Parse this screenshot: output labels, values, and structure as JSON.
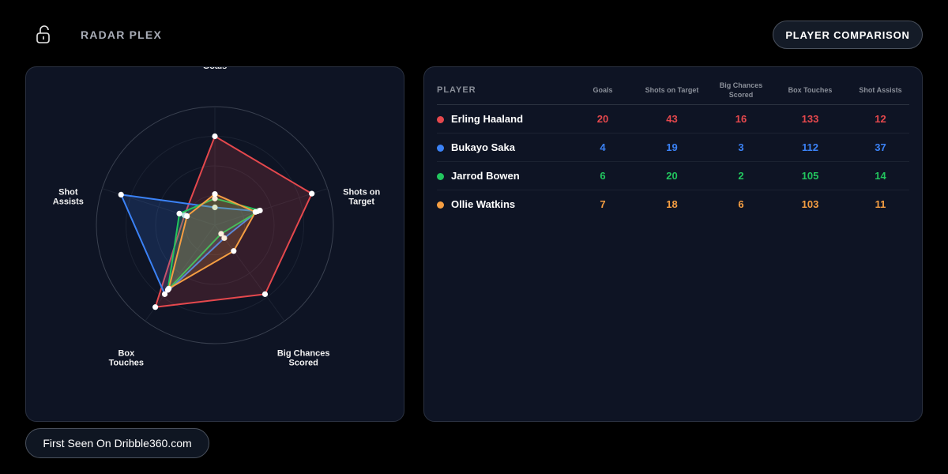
{
  "brand": {
    "name": "RADAR PLEX"
  },
  "header": {
    "compare_button": "PLAYER COMPARISON"
  },
  "footer": {
    "credit": "First Seen On Dribble360.com"
  },
  "table": {
    "player_header": "PLAYER",
    "columns": [
      "Goals",
      "Shots on Target",
      "Big Chances Scored",
      "Box Touches",
      "Shot Assists"
    ],
    "rows": [
      {
        "name": "Erling Haaland",
        "color": "#e5484d",
        "values": [
          "20",
          "43",
          "16",
          "133",
          "12"
        ]
      },
      {
        "name": "Bukayo Saka",
        "color": "#3b82f6",
        "values": [
          "4",
          "19",
          "3",
          "112",
          "37"
        ]
      },
      {
        "name": "Jarrod Bowen",
        "color": "#22c55e",
        "values": [
          "6",
          "20",
          "2",
          "105",
          "14"
        ]
      },
      {
        "name": "Ollie Watkins",
        "color": "#f59e42",
        "values": [
          "7",
          "18",
          "6",
          "103",
          "11"
        ]
      }
    ]
  },
  "chart_data": {
    "type": "radar",
    "axes": [
      {
        "label": [
          "Goals"
        ],
        "max": 24
      },
      {
        "label": [
          "Shots on",
          "Target"
        ],
        "max": 45
      },
      {
        "label": [
          "Big Chances",
          "Scored"
        ],
        "max": 20
      },
      {
        "label": [
          "Box",
          "Touches"
        ],
        "max": 140
      },
      {
        "label": [
          "Shot",
          "Assists"
        ],
        "max": 40
      }
    ],
    "series": [
      {
        "name": "Erling Haaland",
        "color": "#e5484d",
        "values": [
          20,
          43,
          16,
          133,
          12
        ]
      },
      {
        "name": "Bukayo Saka",
        "color": "#3b82f6",
        "values": [
          4,
          19,
          3,
          112,
          37
        ]
      },
      {
        "name": "Jarrod Bowen",
        "color": "#22c55e",
        "values": [
          6,
          20,
          2,
          105,
          14
        ]
      },
      {
        "name": "Ollie Watkins",
        "color": "#f59e42",
        "values": [
          7,
          18,
          6,
          103,
          11
        ]
      }
    ],
    "grid_rings": 4
  }
}
